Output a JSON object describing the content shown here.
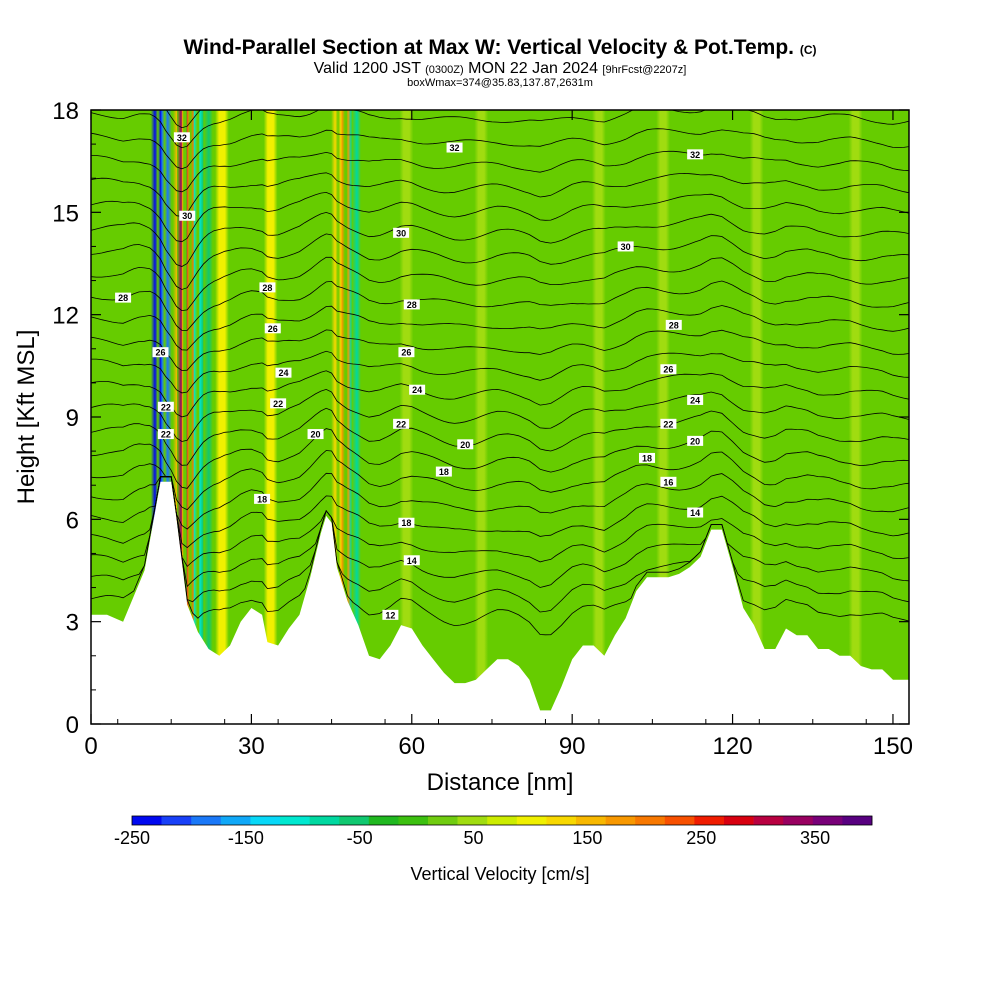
{
  "header": {
    "title": "Wind-Parallel Section at Max W: Vertical Velocity & Pot.Temp.",
    "copyright": "(C)",
    "valid_prefix": "Valid 1200 JST",
    "valid_utc": "(0300Z)",
    "valid_date": "MON 22 Jan 2024",
    "forecast": "[9hrFcst@2207z]",
    "box_wmax": "boxWmax=374@35.83,137.87,2631m"
  },
  "chart_data": {
    "type": "heatmap",
    "xlabel": "Distance [nm]",
    "ylabel": "Height [Kft MSL]",
    "xlim": [
      0,
      153
    ],
    "ylim": [
      0,
      18
    ],
    "x_ticks": [
      "0",
      "30",
      "60",
      "90",
      "120",
      "150"
    ],
    "y_ticks": [
      "0",
      "3",
      "6",
      "9",
      "12",
      "15",
      "18"
    ],
    "terrain": [
      [
        0,
        3.2
      ],
      [
        3,
        3.2
      ],
      [
        6,
        3.0
      ],
      [
        10,
        4.5
      ],
      [
        13,
        7.1
      ],
      [
        15,
        7.1
      ],
      [
        16,
        6.0
      ],
      [
        18,
        3.5
      ],
      [
        20,
        2.7
      ],
      [
        22,
        2.2
      ],
      [
        24,
        2.0
      ],
      [
        26,
        2.3
      ],
      [
        28,
        3.0
      ],
      [
        30,
        3.4
      ],
      [
        32,
        3.2
      ],
      [
        33,
        2.4
      ],
      [
        35,
        2.3
      ],
      [
        37,
        2.8
      ],
      [
        39,
        3.2
      ],
      [
        41,
        4.3
      ],
      [
        43,
        5.6
      ],
      [
        44,
        6.1
      ],
      [
        45,
        5.9
      ],
      [
        46,
        4.6
      ],
      [
        48,
        3.6
      ],
      [
        50,
        2.9
      ],
      [
        52,
        2.0
      ],
      [
        54,
        1.9
      ],
      [
        56,
        2.3
      ],
      [
        58,
        2.9
      ],
      [
        60,
        2.8
      ],
      [
        62,
        2.3
      ],
      [
        64,
        1.9
      ],
      [
        66,
        1.5
      ],
      [
        68,
        1.2
      ],
      [
        70,
        1.2
      ],
      [
        72,
        1.3
      ],
      [
        74,
        1.6
      ],
      [
        76,
        1.9
      ],
      [
        78,
        1.9
      ],
      [
        80,
        1.7
      ],
      [
        82,
        1.3
      ],
      [
        84,
        0.4
      ],
      [
        86,
        0.4
      ],
      [
        88,
        1.1
      ],
      [
        90,
        1.9
      ],
      [
        92,
        2.3
      ],
      [
        94,
        2.3
      ],
      [
        96,
        2.0
      ],
      [
        98,
        2.6
      ],
      [
        100,
        3.1
      ],
      [
        102,
        3.9
      ],
      [
        104,
        4.3
      ],
      [
        106,
        4.3
      ],
      [
        108,
        4.3
      ],
      [
        110,
        4.4
      ],
      [
        112,
        4.6
      ],
      [
        114,
        4.9
      ],
      [
        116,
        5.7
      ],
      [
        118,
        5.7
      ],
      [
        120,
        4.6
      ],
      [
        122,
        3.4
      ],
      [
        124,
        2.9
      ],
      [
        126,
        2.2
      ],
      [
        128,
        2.2
      ],
      [
        130,
        2.8
      ],
      [
        132,
        2.6
      ],
      [
        134,
        2.6
      ],
      [
        136,
        2.2
      ],
      [
        138,
        2.2
      ],
      [
        140,
        2.0
      ],
      [
        142,
        2.0
      ],
      [
        144,
        1.7
      ],
      [
        146,
        1.6
      ],
      [
        148,
        1.6
      ],
      [
        150,
        1.3
      ],
      [
        153,
        1.3
      ]
    ],
    "w_bands": [
      {
        "x": 12.5,
        "w": -240
      },
      {
        "x": 13.8,
        "w": -190
      },
      {
        "x": 16.6,
        "w": 160
      },
      {
        "x": 17.4,
        "w": 330
      },
      {
        "x": 18.6,
        "w": 210
      },
      {
        "x": 19.8,
        "w": -110
      },
      {
        "x": 21.5,
        "w": -60
      },
      {
        "x": 24.5,
        "w": 90
      },
      {
        "x": 33.6,
        "w": 90
      },
      {
        "x": 46.2,
        "w": 130
      },
      {
        "x": 47.5,
        "w": 180
      },
      {
        "x": 49.2,
        "w": -90
      },
      {
        "x": 59.0,
        "w": 40
      },
      {
        "x": 73.0,
        "w": 40
      },
      {
        "x": 95.0,
        "w": 40
      },
      {
        "x": 107.0,
        "w": 45
      },
      {
        "x": 124.5,
        "w": 60
      },
      {
        "x": 143.0,
        "w": 45
      }
    ],
    "contour_labels": [
      {
        "text": "32",
        "x": 17,
        "y": 17.2
      },
      {
        "text": "32",
        "x": 68,
        "y": 16.9
      },
      {
        "text": "32",
        "x": 113,
        "y": 16.7
      },
      {
        "text": "30",
        "x": 18,
        "y": 14.9
      },
      {
        "text": "30",
        "x": 58,
        "y": 14.4
      },
      {
        "text": "30",
        "x": 100,
        "y": 14.0
      },
      {
        "text": "28",
        "x": 6,
        "y": 12.5
      },
      {
        "text": "28",
        "x": 33,
        "y": 12.8
      },
      {
        "text": "28",
        "x": 60,
        "y": 12.3
      },
      {
        "text": "28",
        "x": 109,
        "y": 11.7
      },
      {
        "text": "26",
        "x": 34,
        "y": 11.6
      },
      {
        "text": "26",
        "x": 59,
        "y": 10.9
      },
      {
        "text": "26",
        "x": 108,
        "y": 10.4
      },
      {
        "text": "26",
        "x": 13,
        "y": 10.9
      },
      {
        "text": "24",
        "x": 36,
        "y": 10.3
      },
      {
        "text": "24",
        "x": 61,
        "y": 9.8
      },
      {
        "text": "24",
        "x": 113,
        "y": 9.5
      },
      {
        "text": "22",
        "x": 35,
        "y": 9.4
      },
      {
        "text": "22",
        "x": 58,
        "y": 8.8
      },
      {
        "text": "22",
        "x": 108,
        "y": 8.8
      },
      {
        "text": "22",
        "x": 14,
        "y": 9.3
      },
      {
        "text": "22",
        "x": 14,
        "y": 8.5
      },
      {
        "text": "20",
        "x": 42,
        "y": 8.5
      },
      {
        "text": "20",
        "x": 70,
        "y": 8.2
      },
      {
        "text": "20",
        "x": 113,
        "y": 8.3
      },
      {
        "text": "18",
        "x": 66,
        "y": 7.4
      },
      {
        "text": "18",
        "x": 104,
        "y": 7.8
      },
      {
        "text": "18",
        "x": 32,
        "y": 6.6
      },
      {
        "text": "18",
        "x": 59,
        "y": 5.9
      },
      {
        "text": "16",
        "x": 108,
        "y": 7.1
      },
      {
        "text": "14",
        "x": 113,
        "y": 6.2
      },
      {
        "text": "14",
        "x": 60,
        "y": 4.8
      },
      {
        "text": "12",
        "x": 56,
        "y": 3.2
      }
    ],
    "colorbar": {
      "label": "Vertical Velocity [cm/s]",
      "tick_labels": [
        "-250",
        "-150",
        "-50",
        "50",
        "150",
        "250",
        "350"
      ],
      "min": -250,
      "max": 400,
      "colors": [
        "#0008f0",
        "#1840f8",
        "#1a78f8",
        "#10a8f8",
        "#08d8f8",
        "#00e8d0",
        "#00d8a0",
        "#10c870",
        "#20b820",
        "#3cc010",
        "#70cc10",
        "#a0dc10",
        "#ccec00",
        "#f0f000",
        "#f8d800",
        "#f8b800",
        "#f89800",
        "#f87800",
        "#f85000",
        "#f01c00",
        "#d80010",
        "#b80040",
        "#980060",
        "#780078",
        "#580080"
      ]
    }
  },
  "colors": {
    "background": "#66cc00",
    "frame": "#000000"
  }
}
